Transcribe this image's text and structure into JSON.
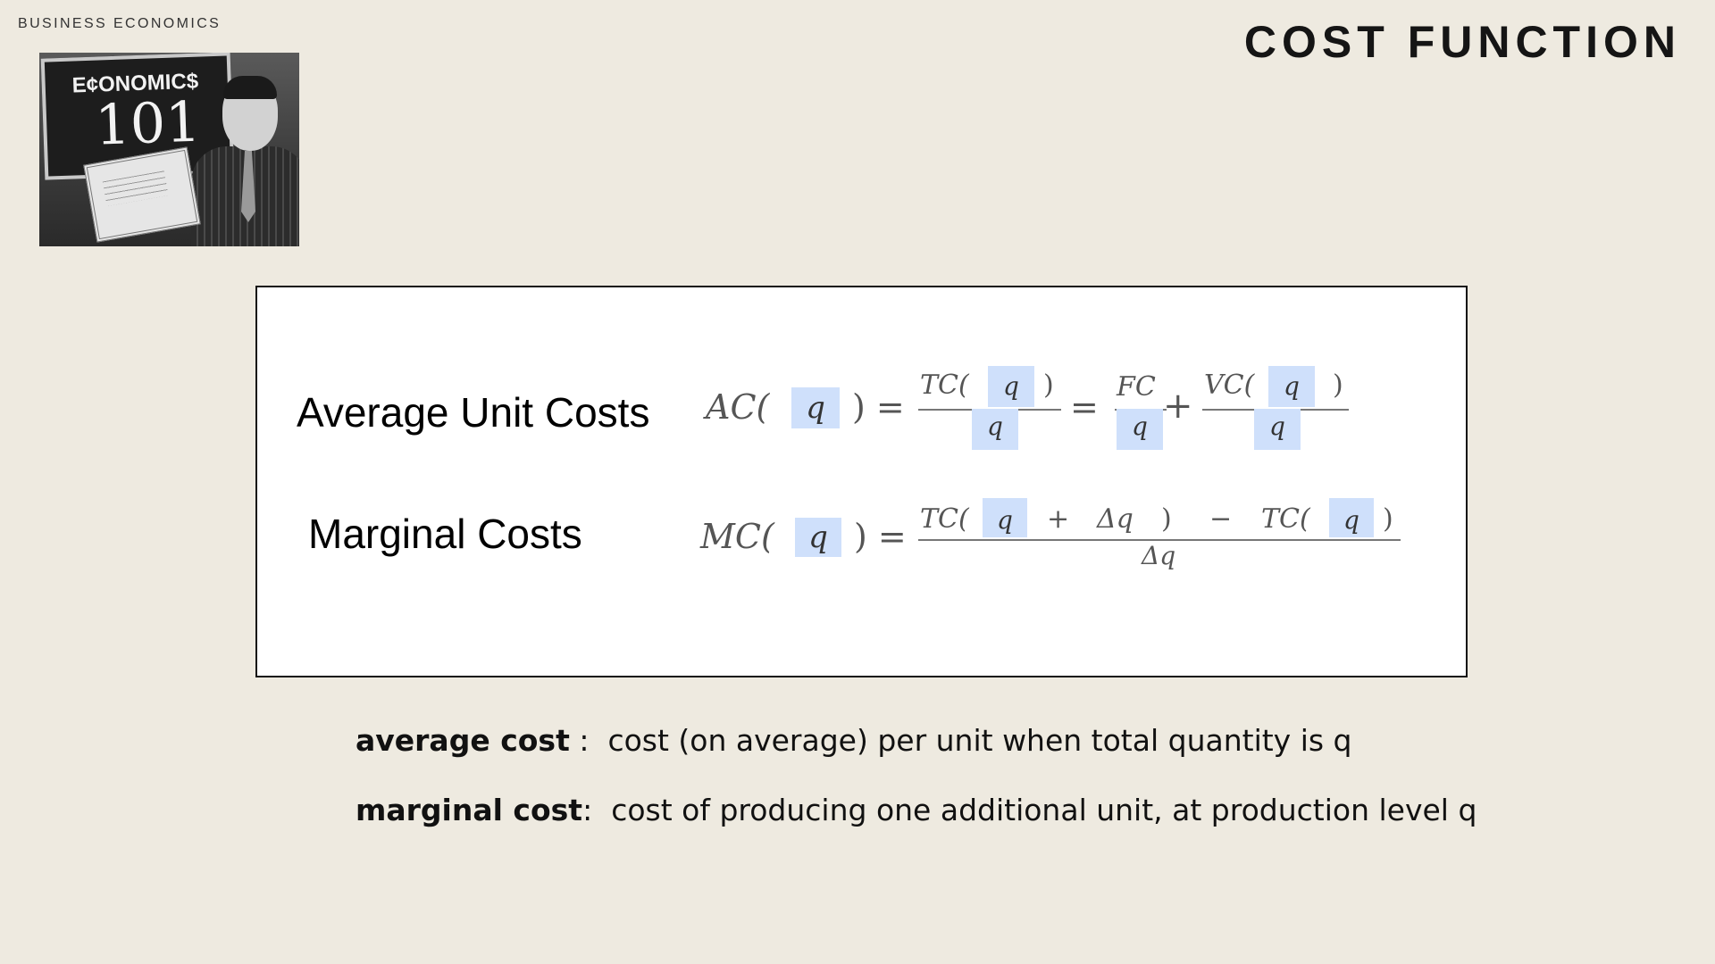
{
  "header": {
    "kicker": "BUSINESS ECONOMICS",
    "title": "COST FUNCTION"
  },
  "photo": {
    "board_line1": "E¢ONOMIC$",
    "board_line2": "101"
  },
  "formulas": {
    "average": {
      "label": "Average Unit Costs",
      "lhs": "AC(",
      "var": "q",
      "close_eq": ") =",
      "tc_num": "TC(",
      "close": ")",
      "eq": "=",
      "fc": "FC",
      "plus": "+",
      "vc": "VC("
    },
    "marginal": {
      "label": "Marginal Costs",
      "lhs": "MC(",
      "var": "q",
      "close_eq": ") =",
      "tc1": "TC(",
      "plus": "+",
      "delta_q": "Δq",
      "close": ")",
      "minus": "−",
      "tc2": "TC("
    }
  },
  "definitions": [
    {
      "term": "average cost",
      "sep": " :  ",
      "text": "cost (on average) per unit when total quantity is q"
    },
    {
      "term": "marginal cost",
      "sep": ":  ",
      "text": "cost of producing one additional unit, at production level q"
    }
  ]
}
